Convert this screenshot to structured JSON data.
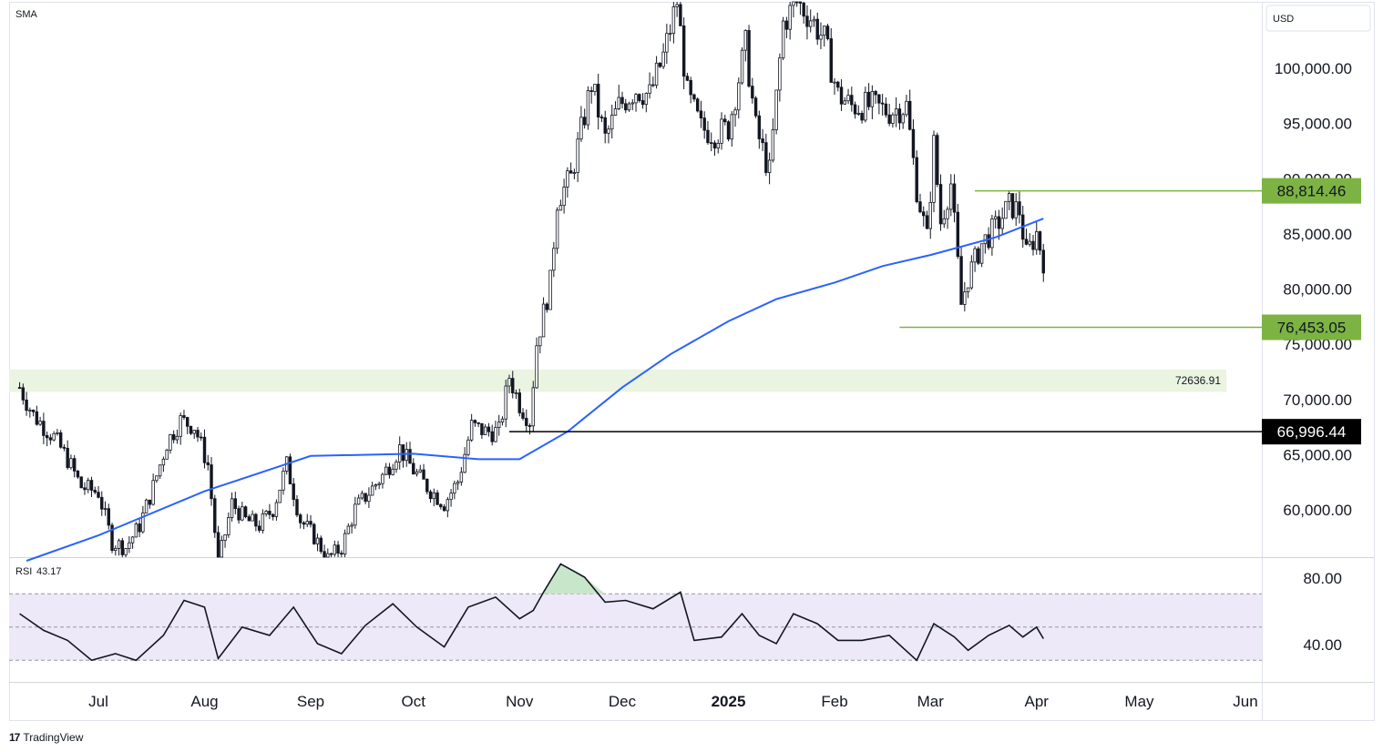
{
  "chart_data": {
    "type": "candlestick",
    "instrument_currency": "USD",
    "overlay_label": "SMA",
    "price_axis": {
      "ticks": [
        "100,000.00",
        "95,000.00",
        "90,000.00",
        "85,000.00",
        "80,000.00",
        "75,000.00",
        "70,000.00",
        "65,000.00",
        "60,000.00"
      ],
      "tick_values": [
        100000,
        95000,
        90000,
        85000,
        80000,
        75000,
        70000,
        65000,
        60000
      ],
      "range": [
        55000,
        106000
      ]
    },
    "time_axis": {
      "labels": [
        "Jul",
        "Aug",
        "Sep",
        "Oct",
        "Nov",
        "Dec",
        "2025",
        "Feb",
        "Mar",
        "Apr",
        "May",
        "Jun"
      ]
    },
    "price_path": [
      [
        "2024-06-08",
        71000
      ],
      [
        "2024-06-12",
        68500
      ],
      [
        "2024-06-18",
        66500
      ],
      [
        "2024-06-22",
        64500
      ],
      [
        "2024-06-26",
        62000
      ],
      [
        "2024-07-01",
        61500
      ],
      [
        "2024-07-05",
        57000
      ],
      [
        "2024-07-09",
        56500
      ],
      [
        "2024-07-13",
        58500
      ],
      [
        "2024-07-17",
        62000
      ],
      [
        "2024-07-21",
        66000
      ],
      [
        "2024-07-25",
        68000
      ],
      [
        "2024-07-29",
        67500
      ],
      [
        "2024-08-02",
        64000
      ],
      [
        "2024-08-05",
        55000
      ],
      [
        "2024-08-09",
        60500
      ],
      [
        "2024-08-13",
        59000
      ],
      [
        "2024-08-17",
        58500
      ],
      [
        "2024-08-21",
        60000
      ],
      [
        "2024-08-25",
        64000
      ],
      [
        "2024-08-29",
        59000
      ],
      [
        "2024-09-02",
        57500
      ],
      [
        "2024-09-06",
        55500
      ],
      [
        "2024-09-10",
        56500
      ],
      [
        "2024-09-14",
        60000
      ],
      [
        "2024-09-18",
        61500
      ],
      [
        "2024-09-22",
        63000
      ],
      [
        "2024-09-27",
        65500
      ],
      [
        "2024-10-01",
        63500
      ],
      [
        "2024-10-05",
        62000
      ],
      [
        "2024-10-10",
        60500
      ],
      [
        "2024-10-14",
        62500
      ],
      [
        "2024-10-18",
        67500
      ],
      [
        "2024-10-22",
        67000
      ],
      [
        "2024-10-26",
        67000
      ],
      [
        "2024-10-29",
        72000
      ],
      [
        "2024-11-01",
        69500
      ],
      [
        "2024-11-04",
        68000
      ],
      [
        "2024-11-06",
        75000
      ],
      [
        "2024-11-10",
        80500
      ],
      [
        "2024-11-12",
        88000
      ],
      [
        "2024-11-16",
        90000
      ],
      [
        "2024-11-22",
        98500
      ],
      [
        "2024-11-26",
        93500
      ],
      [
        "2024-11-30",
        96500
      ],
      [
        "2024-12-05",
        98000
      ],
      [
        "2024-12-09",
        97500
      ],
      [
        "2024-12-13",
        101000
      ],
      [
        "2024-12-17",
        106000
      ],
      [
        "2024-12-20",
        97500
      ],
      [
        "2024-12-24",
        94500
      ],
      [
        "2024-12-28",
        94000
      ],
      [
        "2025-01-01",
        94500
      ],
      [
        "2025-01-06",
        102000
      ],
      [
        "2025-01-09",
        94500
      ],
      [
        "2025-01-13",
        90500
      ],
      [
        "2025-01-17",
        104000
      ],
      [
        "2025-01-21",
        106000
      ],
      [
        "2025-01-25",
        104500
      ],
      [
        "2025-01-29",
        102500
      ],
      [
        "2025-02-02",
        97500
      ],
      [
        "2025-02-06",
        96500
      ],
      [
        "2025-02-12",
        96500
      ],
      [
        "2025-02-17",
        96000
      ],
      [
        "2025-02-22",
        96500
      ],
      [
        "2025-02-25",
        89000
      ],
      [
        "2025-02-28",
        84500
      ],
      [
        "2025-03-02",
        93000
      ],
      [
        "2025-03-04",
        86000
      ],
      [
        "2025-03-07",
        89500
      ],
      [
        "2025-03-10",
        78500
      ],
      [
        "2025-03-12",
        81000
      ],
      [
        "2025-03-16",
        84000
      ],
      [
        "2025-03-20",
        85500
      ],
      [
        "2025-03-24",
        87500
      ],
      [
        "2025-03-27",
        87000
      ],
      [
        "2025-03-29",
        83000
      ],
      [
        "2025-04-01",
        85000
      ],
      [
        "2025-04-03",
        82500
      ]
    ],
    "sma_path": [
      [
        "2024-06-10",
        55300
      ],
      [
        "2024-07-01",
        57600
      ],
      [
        "2024-08-01",
        61600
      ],
      [
        "2024-09-01",
        64800
      ],
      [
        "2024-10-01",
        65000
      ],
      [
        "2024-10-20",
        64500
      ],
      [
        "2024-11-01",
        64500
      ],
      [
        "2024-11-15",
        67000
      ],
      [
        "2024-12-01",
        71000
      ],
      [
        "2024-12-15",
        74000
      ],
      [
        "2025-01-01",
        77000
      ],
      [
        "2025-01-15",
        79000
      ],
      [
        "2025-02-01",
        80500
      ],
      [
        "2025-02-15",
        82000
      ],
      [
        "2025-03-01",
        83000
      ],
      [
        "2025-03-20",
        84600
      ],
      [
        "2025-04-03",
        86300
      ]
    ],
    "horizontal_levels": [
      {
        "value_label": "88,814.46",
        "value": 88814.46,
        "color": "#7cb342",
        "start": "2025-03-14"
      },
      {
        "value_label": "76,453.05",
        "value": 76453.05,
        "color": "#7cb342",
        "start": "2025-02-20"
      },
      {
        "value_label": "66,996.44",
        "value": 66996.44,
        "color": "#000000",
        "start": "2024-10-29"
      }
    ],
    "zone": {
      "label": "72636.91",
      "from": 70600,
      "to": 72636.91,
      "color": "#eaf4e1"
    },
    "rsi": {
      "label": "RSI",
      "value": "43.17",
      "ticks": [
        "80.00",
        "40.00"
      ],
      "tick_values": [
        80,
        40
      ],
      "bands": [
        70,
        50,
        30
      ],
      "path": [
        [
          "2024-06-08",
          58
        ],
        [
          "2024-06-15",
          48
        ],
        [
          "2024-06-22",
          42
        ],
        [
          "2024-06-29",
          30
        ],
        [
          "2024-07-06",
          34
        ],
        [
          "2024-07-12",
          30
        ],
        [
          "2024-07-20",
          45
        ],
        [
          "2024-07-26",
          66
        ],
        [
          "2024-08-01",
          62
        ],
        [
          "2024-08-05",
          31
        ],
        [
          "2024-08-12",
          50
        ],
        [
          "2024-08-20",
          45
        ],
        [
          "2024-08-27",
          62
        ],
        [
          "2024-09-03",
          40
        ],
        [
          "2024-09-10",
          34
        ],
        [
          "2024-09-17",
          51
        ],
        [
          "2024-09-25",
          64
        ],
        [
          "2024-10-02",
          50
        ],
        [
          "2024-10-10",
          38
        ],
        [
          "2024-10-17",
          62
        ],
        [
          "2024-10-25",
          68
        ],
        [
          "2024-11-01",
          55
        ],
        [
          "2024-11-05",
          60
        ],
        [
          "2024-11-08",
          71
        ],
        [
          "2024-11-13",
          88
        ],
        [
          "2024-11-20",
          80
        ],
        [
          "2024-11-26",
          65
        ],
        [
          "2024-12-02",
          66
        ],
        [
          "2024-12-10",
          61
        ],
        [
          "2024-12-18",
          71
        ],
        [
          "2024-12-22",
          42
        ],
        [
          "2024-12-30",
          44
        ],
        [
          "2025-01-05",
          58
        ],
        [
          "2025-01-10",
          45
        ],
        [
          "2025-01-15",
          40
        ],
        [
          "2025-01-20",
          58
        ],
        [
          "2025-01-27",
          52
        ],
        [
          "2025-02-02",
          42
        ],
        [
          "2025-02-09",
          42
        ],
        [
          "2025-02-17",
          45
        ],
        [
          "2025-02-25",
          30
        ],
        [
          "2025-03-02",
          52
        ],
        [
          "2025-03-08",
          44
        ],
        [
          "2025-03-12",
          36
        ],
        [
          "2025-03-18",
          45
        ],
        [
          "2025-03-24",
          51
        ],
        [
          "2025-03-28",
          44
        ],
        [
          "2025-04-01",
          50
        ],
        [
          "2025-04-03",
          43
        ]
      ]
    }
  },
  "footer": {
    "brand": "TradingView",
    "logo_mark": "17"
  }
}
